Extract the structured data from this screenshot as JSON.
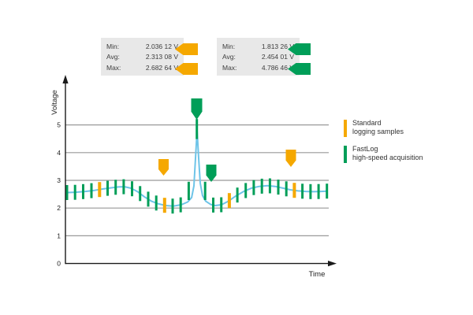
{
  "stats_standard": {
    "rows": [
      {
        "label": "Min:",
        "value": "2.036 12 V"
      },
      {
        "label": "Avg:",
        "value": "2.313 08 V"
      },
      {
        "label": "Max:",
        "value": "2.682 64 V"
      }
    ]
  },
  "stats_fastlog": {
    "rows": [
      {
        "label": "Min:",
        "value": "1.813 26 V"
      },
      {
        "label": "Avg:",
        "value": "2.454 01 V"
      },
      {
        "label": "Max:",
        "value": "4.786 46 V"
      }
    ]
  },
  "legend": {
    "standard": {
      "title": "Standard",
      "subtitle": "logging samples"
    },
    "fastlog": {
      "title": "FastLog",
      "subtitle": "high-speed acquisition"
    }
  },
  "colors": {
    "standard": "#F5A800",
    "fastlog": "#009E58",
    "curve": "#6EC4E8",
    "grid": "#999999",
    "axis": "#1A1A1A",
    "text": "#222222",
    "stats_bg": "#E8E8E8"
  },
  "chart_data": {
    "type": "line",
    "title": "",
    "xlabel": "Time",
    "ylabel": "Voltage",
    "ylim": [
      0,
      5.5
    ],
    "yticks": [
      0,
      1,
      2,
      3,
      4,
      5
    ],
    "grid": "horizontal",
    "legend_position": "right",
    "series": [
      {
        "name": "voltage-waveform",
        "color_key": "curve",
        "points": [
          [
            0,
            2.56
          ],
          [
            3.3,
            2.57
          ],
          [
            7,
            2.6
          ],
          [
            10.6,
            2.64
          ],
          [
            13.9,
            2.69
          ],
          [
            17,
            2.73
          ],
          [
            19.7,
            2.76
          ],
          [
            22.1,
            2.77
          ],
          [
            24.5,
            2.72
          ],
          [
            27,
            2.6
          ],
          [
            29.7,
            2.41
          ],
          [
            32.4,
            2.25
          ],
          [
            35.2,
            2.15
          ],
          [
            37.9,
            2.09
          ],
          [
            40.9,
            2.07
          ],
          [
            43.9,
            2.12
          ],
          [
            46.4,
            2.22
          ],
          [
            47.9,
            2.38
          ],
          [
            48.8,
            2.8
          ],
          [
            49.4,
            3.8
          ],
          [
            50,
            4.79
          ],
          [
            50.6,
            3.8
          ],
          [
            51.2,
            2.9
          ],
          [
            52.1,
            2.45
          ],
          [
            53.3,
            2.25
          ],
          [
            55.2,
            2.13
          ],
          [
            57,
            2.09
          ],
          [
            59.4,
            2.12
          ],
          [
            62.1,
            2.25
          ],
          [
            64.8,
            2.43
          ],
          [
            67.9,
            2.6
          ],
          [
            70.9,
            2.72
          ],
          [
            73.9,
            2.78
          ],
          [
            77,
            2.81
          ],
          [
            80,
            2.78
          ],
          [
            83,
            2.72
          ],
          [
            85.8,
            2.66
          ],
          [
            88.8,
            2.62
          ],
          [
            91.8,
            2.6
          ],
          [
            94.8,
            2.59
          ],
          [
            97.6,
            2.6
          ],
          [
            100,
            2.61
          ]
        ]
      }
    ],
    "fastlog_samples_t": [
      0,
      3.1,
      6.2,
      9.4,
      15.6,
      18.7,
      21.8,
      25,
      28.1,
      31.2,
      34.3,
      40.6,
      43.7,
      46.8,
      49.9,
      53.1,
      56.2,
      59.3,
      65.5,
      68.7,
      71.8,
      74.9,
      78,
      81.2,
      84.3,
      90.5,
      93.6,
      96.7,
      99.9
    ],
    "standard_samples_t": [
      12.5,
      37.5,
      62.4,
      87.4
    ],
    "sample_default_halfheight_v": 0.27,
    "sample_overrides": {
      "46.8": [
        2.62,
        0.33
      ],
      "49.9": [
        4.85,
        0.36
      ],
      "53.1": [
        2.62,
        0.33
      ]
    },
    "annotations": [
      {
        "name": "standard-sample-pointer-left",
        "color": "standard",
        "x": 207.5,
        "tip_y": 223,
        "w": 13,
        "h": 21
      },
      {
        "name": "fastlog-peak-pointer",
        "color": "fastlog",
        "x": 249.5,
        "tip_y": 152,
        "w": 14,
        "h": 27
      },
      {
        "name": "fastlog-sample-pointer",
        "color": "fastlog",
        "x": 268,
        "tip_y": 231,
        "w": 13,
        "h": 22
      },
      {
        "name": "standard-sample-pointer-right",
        "color": "standard",
        "x": 369,
        "tip_y": 212,
        "w": 13,
        "h": 22
      }
    ]
  }
}
